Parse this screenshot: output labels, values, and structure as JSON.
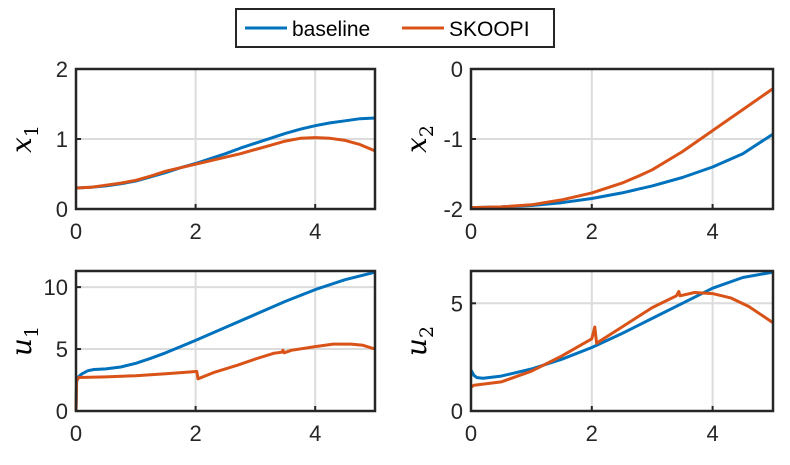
{
  "legend": {
    "placement": "top-center",
    "entries": [
      {
        "label": "baseline",
        "color": "#0072BD"
      },
      {
        "label": "SKOOPI",
        "color": "#D95319"
      }
    ]
  },
  "chart_data": [
    {
      "id": "x1",
      "type": "line",
      "ylabel": "x",
      "ylabel_sub": "1",
      "xlim": [
        0,
        5
      ],
      "ylim": [
        0,
        2
      ],
      "xticks": [
        0,
        2,
        4
      ],
      "yticks": [
        0,
        1,
        2
      ],
      "grid": true,
      "series": [
        {
          "name": "baseline",
          "color": "#0072BD",
          "points": [
            [
              0,
              0.3
            ],
            [
              0.25,
              0.31
            ],
            [
              0.5,
              0.33
            ],
            [
              0.75,
              0.36
            ],
            [
              1,
              0.4
            ],
            [
              1.25,
              0.46
            ],
            [
              1.5,
              0.52
            ],
            [
              1.75,
              0.59
            ],
            [
              2,
              0.65
            ],
            [
              2.25,
              0.72
            ],
            [
              2.5,
              0.79
            ],
            [
              2.75,
              0.87
            ],
            [
              3,
              0.94
            ],
            [
              3.25,
              1.01
            ],
            [
              3.5,
              1.08
            ],
            [
              3.75,
              1.14
            ],
            [
              4,
              1.19
            ],
            [
              4.25,
              1.23
            ],
            [
              4.5,
              1.26
            ],
            [
              4.75,
              1.29
            ],
            [
              5,
              1.3
            ]
          ]
        },
        {
          "name": "SKOOPI",
          "color": "#D95319",
          "points": [
            [
              0,
              0.3
            ],
            [
              0.25,
              0.31
            ],
            [
              0.5,
              0.34
            ],
            [
              0.75,
              0.37
            ],
            [
              1,
              0.41
            ],
            [
              1.25,
              0.47
            ],
            [
              1.5,
              0.54
            ],
            [
              1.75,
              0.59
            ],
            [
              2,
              0.64
            ],
            [
              2.25,
              0.69
            ],
            [
              2.5,
              0.74
            ],
            [
              2.75,
              0.79
            ],
            [
              3,
              0.85
            ],
            [
              3.25,
              0.91
            ],
            [
              3.5,
              0.97
            ],
            [
              3.75,
              1.01
            ],
            [
              4,
              1.02
            ],
            [
              4.25,
              1.01
            ],
            [
              4.5,
              0.98
            ],
            [
              4.75,
              0.92
            ],
            [
              5,
              0.83
            ]
          ]
        }
      ]
    },
    {
      "id": "x2",
      "type": "line",
      "ylabel": "x",
      "ylabel_sub": "2",
      "xlim": [
        0,
        5
      ],
      "ylim": [
        -2,
        0
      ],
      "xticks": [
        0,
        2,
        4
      ],
      "yticks": [
        -2,
        -1,
        0
      ],
      "grid": true,
      "series": [
        {
          "name": "baseline",
          "color": "#0072BD",
          "points": [
            [
              0,
              -1.98
            ],
            [
              0.5,
              -1.97
            ],
            [
              1,
              -1.95
            ],
            [
              1.5,
              -1.91
            ],
            [
              2,
              -1.85
            ],
            [
              2.5,
              -1.77
            ],
            [
              3,
              -1.67
            ],
            [
              3.5,
              -1.55
            ],
            [
              4,
              -1.4
            ],
            [
              4.5,
              -1.21
            ],
            [
              5,
              -0.93
            ]
          ]
        },
        {
          "name": "SKOOPI",
          "color": "#D95319",
          "points": [
            [
              0,
              -1.98
            ],
            [
              0.5,
              -1.97
            ],
            [
              1,
              -1.94
            ],
            [
              1.5,
              -1.87
            ],
            [
              2,
              -1.77
            ],
            [
              2.5,
              -1.63
            ],
            [
              2.8,
              -1.52
            ],
            [
              3,
              -1.44
            ],
            [
              3.5,
              -1.18
            ],
            [
              4,
              -0.88
            ],
            [
              4.5,
              -0.58
            ],
            [
              5,
              -0.28
            ]
          ]
        }
      ]
    },
    {
      "id": "u1",
      "type": "line",
      "ylabel": "u",
      "ylabel_sub": "1",
      "xlim": [
        0,
        5
      ],
      "ylim": [
        0,
        11.3
      ],
      "xticks": [
        0,
        2,
        4
      ],
      "yticks": [
        0,
        5,
        10
      ],
      "grid": true,
      "series": [
        {
          "name": "baseline",
          "color": "#0072BD",
          "points": [
            [
              0,
              0
            ],
            [
              0.01,
              2.4
            ],
            [
              0.05,
              2.8
            ],
            [
              0.1,
              3.0
            ],
            [
              0.2,
              3.25
            ],
            [
              0.3,
              3.35
            ],
            [
              0.5,
              3.4
            ],
            [
              0.75,
              3.55
            ],
            [
              1,
              3.85
            ],
            [
              1.25,
              4.25
            ],
            [
              1.5,
              4.7
            ],
            [
              1.75,
              5.2
            ],
            [
              2,
              5.7
            ],
            [
              2.5,
              6.75
            ],
            [
              3,
              7.8
            ],
            [
              3.5,
              8.85
            ],
            [
              4,
              9.8
            ],
            [
              4.5,
              10.6
            ],
            [
              5,
              11.2
            ]
          ]
        },
        {
          "name": "SKOOPI",
          "color": "#D95319",
          "points": [
            [
              0,
              0
            ],
            [
              0.01,
              2.5
            ],
            [
              0.05,
              2.7
            ],
            [
              0.5,
              2.75
            ],
            [
              1,
              2.85
            ],
            [
              1.5,
              3.0
            ],
            [
              1.9,
              3.15
            ],
            [
              2.02,
              3.2
            ],
            [
              2.04,
              2.6
            ],
            [
              2.3,
              3.1
            ],
            [
              2.7,
              3.7
            ],
            [
              3.0,
              4.2
            ],
            [
              3.3,
              4.65
            ],
            [
              3.44,
              4.75
            ],
            [
              3.46,
              4.9
            ],
            [
              3.48,
              4.7
            ],
            [
              3.6,
              4.9
            ],
            [
              4,
              5.2
            ],
            [
              4.3,
              5.4
            ],
            [
              4.6,
              5.4
            ],
            [
              4.8,
              5.3
            ],
            [
              5,
              5.0
            ]
          ]
        }
      ]
    },
    {
      "id": "u2",
      "type": "line",
      "ylabel": "u",
      "ylabel_sub": "2",
      "xlim": [
        0,
        5
      ],
      "ylim": [
        0,
        6.5
      ],
      "xticks": [
        0,
        2,
        4
      ],
      "yticks": [
        0,
        5
      ],
      "grid": true,
      "series": [
        {
          "name": "baseline",
          "color": "#0072BD",
          "points": [
            [
              0,
              1.9
            ],
            [
              0.05,
              1.65
            ],
            [
              0.1,
              1.55
            ],
            [
              0.2,
              1.52
            ],
            [
              0.5,
              1.62
            ],
            [
              1,
              1.95
            ],
            [
              1.5,
              2.4
            ],
            [
              2,
              2.95
            ],
            [
              2.5,
              3.6
            ],
            [
              3,
              4.3
            ],
            [
              3.5,
              5.0
            ],
            [
              4,
              5.7
            ],
            [
              4.5,
              6.2
            ],
            [
              5,
              6.45
            ]
          ]
        },
        {
          "name": "SKOOPI",
          "color": "#D95319",
          "points": [
            [
              0,
              1.1
            ],
            [
              0.05,
              1.2
            ],
            [
              0.5,
              1.35
            ],
            [
              1,
              1.85
            ],
            [
              1.5,
              2.55
            ],
            [
              2,
              3.35
            ],
            [
              2.05,
              3.9
            ],
            [
              2.08,
              3.15
            ],
            [
              2.5,
              3.9
            ],
            [
              3,
              4.8
            ],
            [
              3.4,
              5.35
            ],
            [
              3.44,
              5.55
            ],
            [
              3.46,
              5.35
            ],
            [
              3.7,
              5.5
            ],
            [
              4,
              5.45
            ],
            [
              4.3,
              5.25
            ],
            [
              4.6,
              4.85
            ],
            [
              5,
              4.1
            ]
          ]
        }
      ]
    }
  ]
}
